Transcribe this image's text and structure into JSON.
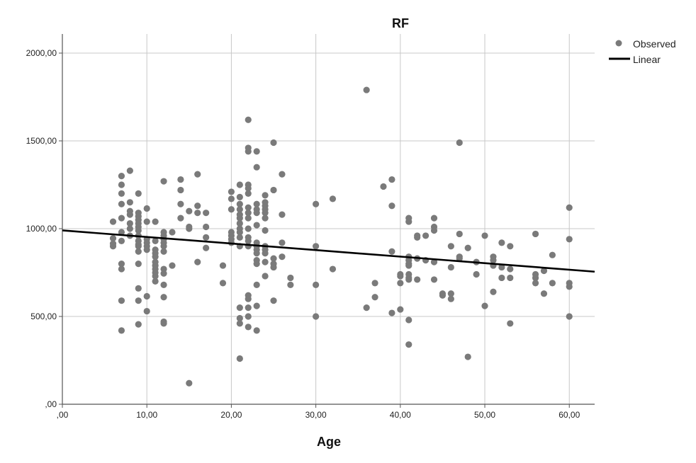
{
  "chart_data": {
    "type": "scatter",
    "title": "RF",
    "xlabel": "Age",
    "ylabel": "",
    "xlim": [
      0,
      63
    ],
    "ylim": [
      0,
      2000
    ],
    "xticks": [
      0,
      10,
      20,
      30,
      40,
      50,
      60
    ],
    "xtick_labels": [
      ",00",
      "10,00",
      "20,00",
      "30,00",
      "40,00",
      "50,00",
      "60,00"
    ],
    "yticks": [
      0,
      500,
      1000,
      1500,
      2000
    ],
    "ytick_labels": [
      ",00",
      "500,00",
      "1000,00",
      "1500,00",
      "2000,00"
    ],
    "grid": true,
    "legend_position": "top-right",
    "colors": {
      "points": "#7a7a7a",
      "line": "#000000",
      "grid": "#c8c8c8",
      "axis": "#555555"
    },
    "series": [
      {
        "name": "Observed",
        "type": "scatter",
        "points": [
          [
            6,
            1040
          ],
          [
            6,
            945
          ],
          [
            6,
            900
          ],
          [
            6,
            915
          ],
          [
            7,
            1300
          ],
          [
            7,
            1250
          ],
          [
            7,
            1200
          ],
          [
            7,
            1140
          ],
          [
            7,
            1060
          ],
          [
            7,
            980
          ],
          [
            7,
            930
          ],
          [
            7,
            800
          ],
          [
            7,
            770
          ],
          [
            7,
            590
          ],
          [
            7,
            420
          ],
          [
            8,
            1330
          ],
          [
            8,
            1150
          ],
          [
            8,
            1100
          ],
          [
            8,
            1080
          ],
          [
            8,
            1030
          ],
          [
            8,
            1000
          ],
          [
            8,
            960
          ],
          [
            9,
            1200
          ],
          [
            9,
            1090
          ],
          [
            9,
            1070
          ],
          [
            9,
            1050
          ],
          [
            9,
            1030
          ],
          [
            9,
            1010
          ],
          [
            9,
            990
          ],
          [
            9,
            960
          ],
          [
            9,
            930
          ],
          [
            9,
            910
          ],
          [
            9,
            900
          ],
          [
            9,
            870
          ],
          [
            9,
            800
          ],
          [
            9,
            660
          ],
          [
            9,
            590
          ],
          [
            9,
            455
          ],
          [
            10,
            1115
          ],
          [
            10,
            1040
          ],
          [
            10,
            940
          ],
          [
            10,
            920
          ],
          [
            10,
            900
          ],
          [
            10,
            880
          ],
          [
            10,
            615
          ],
          [
            10,
            530
          ],
          [
            11,
            1040
          ],
          [
            11,
            930
          ],
          [
            11,
            880
          ],
          [
            11,
            860
          ],
          [
            11,
            840
          ],
          [
            11,
            810
          ],
          [
            11,
            790
          ],
          [
            11,
            770
          ],
          [
            11,
            750
          ],
          [
            11,
            730
          ],
          [
            11,
            700
          ],
          [
            12,
            1270
          ],
          [
            12,
            980
          ],
          [
            12,
            960
          ],
          [
            12,
            940
          ],
          [
            12,
            920
          ],
          [
            12,
            900
          ],
          [
            12,
            870
          ],
          [
            12,
            770
          ],
          [
            12,
            745
          ],
          [
            12,
            680
          ],
          [
            12,
            610
          ],
          [
            12,
            470
          ],
          [
            12,
            460
          ],
          [
            13,
            980
          ],
          [
            13,
            790
          ],
          [
            14,
            1280
          ],
          [
            14,
            1220
          ],
          [
            14,
            1140
          ],
          [
            14,
            1060
          ],
          [
            15,
            1100
          ],
          [
            15,
            1010
          ],
          [
            15,
            1000
          ],
          [
            15,
            120
          ],
          [
            16,
            1310
          ],
          [
            16,
            1130
          ],
          [
            16,
            1090
          ],
          [
            16,
            810
          ],
          [
            17,
            1090
          ],
          [
            17,
            1010
          ],
          [
            17,
            950
          ],
          [
            17,
            890
          ],
          [
            19,
            790
          ],
          [
            19,
            690
          ],
          [
            20,
            1210
          ],
          [
            20,
            1170
          ],
          [
            20,
            1110
          ],
          [
            20,
            980
          ],
          [
            20,
            960
          ],
          [
            20,
            940
          ],
          [
            20,
            920
          ],
          [
            21,
            1250
          ],
          [
            21,
            1180
          ],
          [
            21,
            1140
          ],
          [
            21,
            1110
          ],
          [
            21,
            1080
          ],
          [
            21,
            1060
          ],
          [
            21,
            1030
          ],
          [
            21,
            1000
          ],
          [
            21,
            980
          ],
          [
            21,
            950
          ],
          [
            21,
            900
          ],
          [
            21,
            550
          ],
          [
            21,
            490
          ],
          [
            21,
            460
          ],
          [
            21,
            260
          ],
          [
            22,
            1620
          ],
          [
            22,
            1460
          ],
          [
            22,
            1440
          ],
          [
            22,
            1250
          ],
          [
            22,
            1230
          ],
          [
            22,
            1200
          ],
          [
            22,
            1120
          ],
          [
            22,
            1090
          ],
          [
            22,
            1060
          ],
          [
            22,
            1000
          ],
          [
            22,
            950
          ],
          [
            22,
            930
          ],
          [
            22,
            900
          ],
          [
            22,
            620
          ],
          [
            22,
            600
          ],
          [
            22,
            550
          ],
          [
            22,
            500
          ],
          [
            22,
            440
          ],
          [
            23,
            1440
          ],
          [
            23,
            1350
          ],
          [
            23,
            1140
          ],
          [
            23,
            1110
          ],
          [
            23,
            1090
          ],
          [
            23,
            1020
          ],
          [
            23,
            920
          ],
          [
            23,
            900
          ],
          [
            23,
            880
          ],
          [
            23,
            860
          ],
          [
            23,
            820
          ],
          [
            23,
            800
          ],
          [
            23,
            680
          ],
          [
            23,
            560
          ],
          [
            23,
            420
          ],
          [
            24,
            1190
          ],
          [
            24,
            1150
          ],
          [
            24,
            1130
          ],
          [
            24,
            1110
          ],
          [
            24,
            1090
          ],
          [
            24,
            1060
          ],
          [
            24,
            990
          ],
          [
            24,
            900
          ],
          [
            24,
            880
          ],
          [
            24,
            860
          ],
          [
            24,
            810
          ],
          [
            24,
            730
          ],
          [
            25,
            1490
          ],
          [
            25,
            1220
          ],
          [
            25,
            830
          ],
          [
            25,
            800
          ],
          [
            25,
            780
          ],
          [
            25,
            590
          ],
          [
            26,
            1310
          ],
          [
            26,
            1080
          ],
          [
            26,
            920
          ],
          [
            26,
            840
          ],
          [
            27,
            720
          ],
          [
            27,
            680
          ],
          [
            30,
            1140
          ],
          [
            30,
            900
          ],
          [
            30,
            680
          ],
          [
            30,
            500
          ],
          [
            32,
            1170
          ],
          [
            32,
            770
          ],
          [
            36,
            1790
          ],
          [
            36,
            550
          ],
          [
            37,
            690
          ],
          [
            37,
            610
          ],
          [
            38,
            1240
          ],
          [
            39,
            1280
          ],
          [
            39,
            1130
          ],
          [
            39,
            870
          ],
          [
            39,
            520
          ],
          [
            40,
            740
          ],
          [
            40,
            730
          ],
          [
            40,
            690
          ],
          [
            40,
            540
          ],
          [
            41,
            1060
          ],
          [
            41,
            1040
          ],
          [
            41,
            840
          ],
          [
            41,
            820
          ],
          [
            41,
            800
          ],
          [
            41,
            790
          ],
          [
            41,
            740
          ],
          [
            41,
            720
          ],
          [
            41,
            710
          ],
          [
            41,
            480
          ],
          [
            41,
            340
          ],
          [
            42,
            960
          ],
          [
            42,
            950
          ],
          [
            42,
            830
          ],
          [
            42,
            710
          ],
          [
            43,
            960
          ],
          [
            43,
            820
          ],
          [
            44,
            1060
          ],
          [
            44,
            1010
          ],
          [
            44,
            990
          ],
          [
            44,
            810
          ],
          [
            44,
            710
          ],
          [
            45,
            630
          ],
          [
            45,
            620
          ],
          [
            46,
            900
          ],
          [
            46,
            780
          ],
          [
            46,
            630
          ],
          [
            46,
            600
          ],
          [
            47,
            1490
          ],
          [
            47,
            970
          ],
          [
            47,
            840
          ],
          [
            47,
            830
          ],
          [
            48,
            890
          ],
          [
            48,
            270
          ],
          [
            49,
            810
          ],
          [
            49,
            740
          ],
          [
            50,
            960
          ],
          [
            50,
            560
          ],
          [
            51,
            840
          ],
          [
            51,
            820
          ],
          [
            51,
            790
          ],
          [
            51,
            640
          ],
          [
            52,
            920
          ],
          [
            52,
            780
          ],
          [
            52,
            720
          ],
          [
            53,
            900
          ],
          [
            53,
            770
          ],
          [
            53,
            720
          ],
          [
            53,
            460
          ],
          [
            56,
            970
          ],
          [
            56,
            740
          ],
          [
            56,
            720
          ],
          [
            56,
            690
          ],
          [
            57,
            760
          ],
          [
            57,
            630
          ],
          [
            58,
            850
          ],
          [
            58,
            690
          ],
          [
            60,
            1120
          ],
          [
            60,
            940
          ],
          [
            60,
            690
          ],
          [
            60,
            670
          ],
          [
            60,
            500
          ]
        ]
      },
      {
        "name": "Linear",
        "type": "line",
        "points": [
          [
            0,
            990
          ],
          [
            63,
            755
          ]
        ]
      }
    ]
  }
}
